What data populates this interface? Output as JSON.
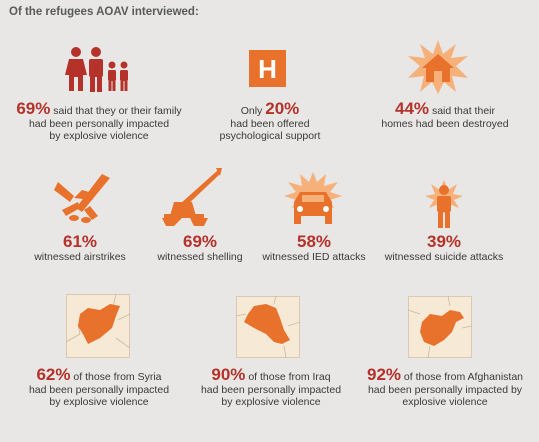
{
  "title": "Of the refugees AOAV interviewed:",
  "colors": {
    "accent": "#e8712b",
    "percent": "#b5322a",
    "background": "#e8e7e6",
    "map": "#f6ead6"
  },
  "row1": [
    {
      "pct": "69%",
      "pre": "",
      "post": " said that they or their family",
      "l2": "had been personally impacted",
      "l3": "by explosive violence",
      "icon": "family-icon"
    },
    {
      "pct": "20%",
      "pre": "Only ",
      "post": "",
      "l2": "had been offered",
      "l3": "psychological support",
      "icon": "hospital-icon",
      "icon_letter": "H"
    },
    {
      "pct": "44%",
      "pre": "",
      "post": " said that their",
      "l2": "homes had been destroyed",
      "l3": "",
      "icon": "destroyed-home-icon"
    }
  ],
  "row2": [
    {
      "pct": "61%",
      "text": "witnessed airstrikes",
      "icon": "jet-icon"
    },
    {
      "pct": "69%",
      "text": "witnessed shelling",
      "icon": "artillery-icon"
    },
    {
      "pct": "58%",
      "text": "witnessed IED attacks",
      "icon": "car-bomb-icon"
    },
    {
      "pct": "39%",
      "text": "witnessed suicide attacks",
      "icon": "suicide-bomber-icon"
    }
  ],
  "row3": [
    {
      "pct": "62%",
      "post": " of those from Syria",
      "l2": "had been personally impacted",
      "l3": "by explosive violence",
      "icon": "syria-map-icon"
    },
    {
      "pct": "90%",
      "post": " of those from Iraq",
      "l2": "had been personally impacted",
      "l3": "by explosive violence",
      "icon": "iraq-map-icon"
    },
    {
      "pct": "92%",
      "post": " of those from Afghanistan",
      "l2": "had been personally impacted by",
      "l3": "explosive violence",
      "icon": "afghanistan-map-icon"
    }
  ]
}
